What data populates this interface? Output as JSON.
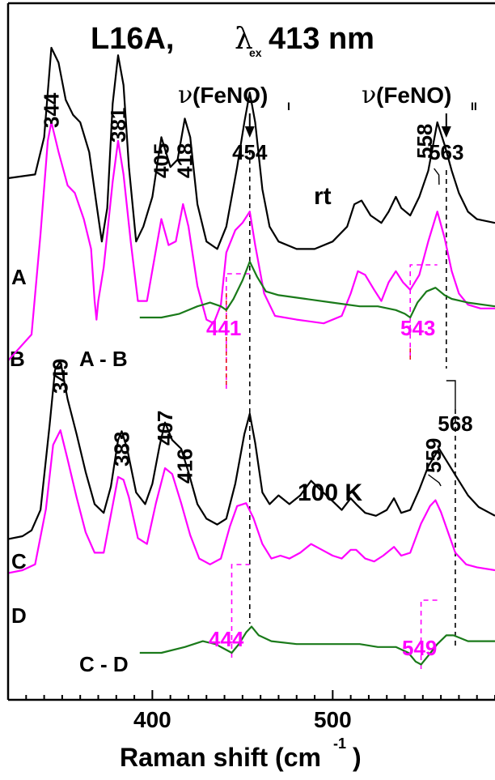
{
  "chart_data": {
    "type": "line",
    "title": {
      "main": "L16A,",
      "lambda": "λ",
      "sub": "ex",
      "tail": "413 nm"
    },
    "xlabel": "Raman shift (cm",
    "xlabel_sup": "-1",
    "xlabel_tail": ")",
    "xlim": [
      320,
      590
    ],
    "xticks": [
      400,
      500
    ],
    "colors": {
      "black": "#000000",
      "magenta": "#ff00ff",
      "green": "#1a7a1a"
    },
    "conditions": {
      "rt": "rt",
      "lowT": "100 K"
    },
    "mode_labels": [
      {
        "nu": "ν",
        "text": "(FeNO)",
        "sub": "I",
        "x": 454
      },
      {
        "nu": "ν",
        "text": "(FeNO)",
        "sub": "II",
        "x": 563
      }
    ],
    "peak_labels": [
      {
        "trace": "A",
        "text": "344",
        "x": 344,
        "rotate": true
      },
      {
        "trace": "A",
        "text": "381",
        "x": 381,
        "rotate": true
      },
      {
        "trace": "A",
        "text": "405",
        "x": 405,
        "rotate": true
      },
      {
        "trace": "A",
        "text": "418",
        "x": 418,
        "rotate": true
      },
      {
        "trace": "A",
        "text": "454",
        "x": 454,
        "rotate": false
      },
      {
        "trace": "A",
        "text": "558",
        "x": 558,
        "rotate": true
      },
      {
        "trace": "A",
        "text": "563",
        "x": 563,
        "rotate": false
      },
      {
        "trace": "C",
        "text": "349",
        "x": 349,
        "rotate": true
      },
      {
        "trace": "C",
        "text": "383",
        "x": 383,
        "rotate": true
      },
      {
        "trace": "C",
        "text": "407",
        "x": 407,
        "rotate": true
      },
      {
        "trace": "C",
        "text": "416",
        "x": 416,
        "rotate": true
      },
      {
        "trace": "C",
        "text": "559",
        "x": 559,
        "rotate": true
      },
      {
        "trace": "CD",
        "text": "568",
        "x": 568,
        "rotate": false
      }
    ],
    "diff_labels": [
      {
        "text": "441",
        "x": 441
      },
      {
        "text": "543",
        "x": 543
      },
      {
        "text": "444",
        "x": 444
      },
      {
        "text": "549",
        "x": 549
      }
    ],
    "series": [
      {
        "name": "A",
        "color": "#000000",
        "points": [
          [
            320,
            0.55
          ],
          [
            335,
            0.56
          ],
          [
            340,
            0.66
          ],
          [
            344,
            0.9
          ],
          [
            348,
            0.86
          ],
          [
            352,
            0.76
          ],
          [
            356,
            0.72
          ],
          [
            360,
            0.7
          ],
          [
            365,
            0.62
          ],
          [
            369,
            0.48
          ],
          [
            372,
            0.38
          ],
          [
            375,
            0.47
          ],
          [
            378,
            0.75
          ],
          [
            381,
            0.88
          ],
          [
            384,
            0.8
          ],
          [
            387,
            0.58
          ],
          [
            391,
            0.38
          ],
          [
            395,
            0.42
          ],
          [
            400,
            0.5
          ],
          [
            405,
            0.66
          ],
          [
            410,
            0.58
          ],
          [
            414,
            0.6
          ],
          [
            418,
            0.71
          ],
          [
            421,
            0.66
          ],
          [
            425,
            0.48
          ],
          [
            430,
            0.38
          ],
          [
            436,
            0.36
          ],
          [
            441,
            0.42
          ],
          [
            447,
            0.58
          ],
          [
            451,
            0.7
          ],
          [
            454,
            0.78
          ],
          [
            457,
            0.7
          ],
          [
            461,
            0.52
          ],
          [
            465,
            0.42
          ],
          [
            470,
            0.38
          ],
          [
            480,
            0.36
          ],
          [
            490,
            0.36
          ],
          [
            500,
            0.38
          ],
          [
            508,
            0.42
          ],
          [
            512,
            0.48
          ],
          [
            516,
            0.49
          ],
          [
            521,
            0.45
          ],
          [
            527,
            0.43
          ],
          [
            531,
            0.46
          ],
          [
            535,
            0.5
          ],
          [
            538,
            0.47
          ],
          [
            543,
            0.45
          ],
          [
            548,
            0.5
          ],
          [
            553,
            0.57
          ],
          [
            558,
            0.7
          ],
          [
            562,
            0.64
          ],
          [
            566,
            0.57
          ],
          [
            570,
            0.51
          ],
          [
            575,
            0.46
          ],
          [
            580,
            0.44
          ],
          [
            590,
            0.43
          ]
        ]
      },
      {
        "name": "B",
        "color": "#ff00ff",
        "points": [
          [
            320,
            0.08
          ],
          [
            333,
            0.15
          ],
          [
            338,
            0.42
          ],
          [
            342,
            0.67
          ],
          [
            344,
            0.72
          ],
          [
            348,
            0.64
          ],
          [
            353,
            0.55
          ],
          [
            357,
            0.53
          ],
          [
            362,
            0.46
          ],
          [
            366,
            0.38
          ],
          [
            368,
            0.24
          ],
          [
            369,
            0.19
          ],
          [
            370,
            0.24
          ],
          [
            373,
            0.33
          ],
          [
            378,
            0.56
          ],
          [
            381,
            0.67
          ],
          [
            384,
            0.58
          ],
          [
            388,
            0.4
          ],
          [
            392,
            0.24
          ],
          [
            397,
            0.24
          ],
          [
            401,
            0.35
          ],
          [
            405,
            0.46
          ],
          [
            409,
            0.39
          ],
          [
            413,
            0.4
          ],
          [
            417,
            0.5
          ],
          [
            420,
            0.44
          ],
          [
            425,
            0.28
          ],
          [
            430,
            0.19
          ],
          [
            434,
            0.18
          ],
          [
            438,
            0.23
          ],
          [
            441,
            0.37
          ],
          [
            446,
            0.43
          ],
          [
            450,
            0.45
          ],
          [
            454,
            0.48
          ],
          [
            457,
            0.39
          ],
          [
            462,
            0.26
          ],
          [
            468,
            0.2
          ],
          [
            480,
            0.19
          ],
          [
            495,
            0.18
          ],
          [
            505,
            0.2
          ],
          [
            510,
            0.26
          ],
          [
            514,
            0.32
          ],
          [
            518,
            0.31
          ],
          [
            523,
            0.27
          ],
          [
            527,
            0.24
          ],
          [
            531,
            0.29
          ],
          [
            535,
            0.32
          ],
          [
            539,
            0.29
          ],
          [
            543,
            0.27
          ],
          [
            548,
            0.31
          ],
          [
            553,
            0.4
          ],
          [
            558,
            0.48
          ],
          [
            562,
            0.41
          ],
          [
            566,
            0.32
          ],
          [
            570,
            0.26
          ],
          [
            575,
            0.23
          ],
          [
            582,
            0.22
          ],
          [
            590,
            0.22
          ]
        ]
      },
      {
        "name": "A - B",
        "color": "#1a7a1a",
        "points": [
          [
            393,
            0.25
          ],
          [
            405,
            0.25
          ],
          [
            415,
            0.26
          ],
          [
            425,
            0.28
          ],
          [
            432,
            0.29
          ],
          [
            438,
            0.28
          ],
          [
            441,
            0.27
          ],
          [
            445,
            0.3
          ],
          [
            450,
            0.35
          ],
          [
            454,
            0.4
          ],
          [
            458,
            0.36
          ],
          [
            463,
            0.32
          ],
          [
            470,
            0.31
          ],
          [
            485,
            0.3
          ],
          [
            500,
            0.29
          ],
          [
            515,
            0.28
          ],
          [
            525,
            0.28
          ],
          [
            535,
            0.27
          ],
          [
            540,
            0.26
          ],
          [
            543,
            0.25
          ],
          [
            547,
            0.29
          ],
          [
            552,
            0.32
          ],
          [
            557,
            0.33
          ],
          [
            562,
            0.31
          ],
          [
            566,
            0.3
          ],
          [
            575,
            0.29
          ],
          [
            590,
            0.28
          ]
        ]
      },
      {
        "name": "C",
        "color": "#000000",
        "points": [
          [
            320,
            0.24
          ],
          [
            328,
            0.25
          ],
          [
            333,
            0.27
          ],
          [
            338,
            0.34
          ],
          [
            343,
            0.63
          ],
          [
            346,
            0.82
          ],
          [
            349,
            0.85
          ],
          [
            353,
            0.72
          ],
          [
            358,
            0.6
          ],
          [
            363,
            0.47
          ],
          [
            368,
            0.36
          ],
          [
            373,
            0.33
          ],
          [
            377,
            0.42
          ],
          [
            381,
            0.58
          ],
          [
            383,
            0.61
          ],
          [
            386,
            0.55
          ],
          [
            391,
            0.4
          ],
          [
            396,
            0.36
          ],
          [
            400,
            0.43
          ],
          [
            404,
            0.56
          ],
          [
            407,
            0.64
          ],
          [
            411,
            0.58
          ],
          [
            416,
            0.55
          ],
          [
            420,
            0.47
          ],
          [
            425,
            0.36
          ],
          [
            430,
            0.31
          ],
          [
            436,
            0.29
          ],
          [
            441,
            0.31
          ],
          [
            446,
            0.43
          ],
          [
            451,
            0.6
          ],
          [
            454,
            0.67
          ],
          [
            457,
            0.57
          ],
          [
            461,
            0.4
          ],
          [
            465,
            0.36
          ],
          [
            470,
            0.39
          ],
          [
            476,
            0.36
          ],
          [
            482,
            0.39
          ],
          [
            488,
            0.44
          ],
          [
            493,
            0.41
          ],
          [
            500,
            0.37
          ],
          [
            505,
            0.34
          ],
          [
            510,
            0.38
          ],
          [
            513,
            0.36
          ],
          [
            518,
            0.33
          ],
          [
            524,
            0.32
          ],
          [
            530,
            0.34
          ],
          [
            534,
            0.38
          ],
          [
            538,
            0.33
          ],
          [
            543,
            0.34
          ],
          [
            548,
            0.41
          ],
          [
            553,
            0.49
          ],
          [
            559,
            0.55
          ],
          [
            563,
            0.51
          ],
          [
            567,
            0.47
          ],
          [
            571,
            0.43
          ],
          [
            575,
            0.39
          ],
          [
            581,
            0.35
          ],
          [
            587,
            0.33
          ],
          [
            590,
            0.32
          ]
        ]
      },
      {
        "name": "D",
        "color": "#ff00ff",
        "points": [
          [
            320,
            0.14
          ],
          [
            328,
            0.15
          ],
          [
            335,
            0.17
          ],
          [
            341,
            0.36
          ],
          [
            345,
            0.58
          ],
          [
            349,
            0.63
          ],
          [
            353,
            0.53
          ],
          [
            358,
            0.4
          ],
          [
            363,
            0.28
          ],
          [
            368,
            0.21
          ],
          [
            373,
            0.21
          ],
          [
            377,
            0.34
          ],
          [
            381,
            0.47
          ],
          [
            384,
            0.46
          ],
          [
            387,
            0.4
          ],
          [
            392,
            0.26
          ],
          [
            397,
            0.24
          ],
          [
            402,
            0.38
          ],
          [
            407,
            0.5
          ],
          [
            411,
            0.48
          ],
          [
            416,
            0.38
          ],
          [
            421,
            0.27
          ],
          [
            426,
            0.19
          ],
          [
            432,
            0.17
          ],
          [
            438,
            0.19
          ],
          [
            443,
            0.3
          ],
          [
            447,
            0.37
          ],
          [
            452,
            0.38
          ],
          [
            456,
            0.33
          ],
          [
            461,
            0.24
          ],
          [
            466,
            0.19
          ],
          [
            471,
            0.2
          ],
          [
            476,
            0.19
          ],
          [
            482,
            0.21
          ],
          [
            488,
            0.24
          ],
          [
            494,
            0.22
          ],
          [
            500,
            0.2
          ],
          [
            505,
            0.19
          ],
          [
            510,
            0.22
          ],
          [
            513,
            0.22
          ],
          [
            518,
            0.19
          ],
          [
            523,
            0.18
          ],
          [
            528,
            0.2
          ],
          [
            534,
            0.23
          ],
          [
            538,
            0.2
          ],
          [
            543,
            0.21
          ],
          [
            549,
            0.31
          ],
          [
            554,
            0.37
          ],
          [
            557,
            0.39
          ],
          [
            560,
            0.35
          ],
          [
            564,
            0.28
          ],
          [
            568,
            0.21
          ],
          [
            574,
            0.17
          ],
          [
            580,
            0.16
          ],
          [
            590,
            0.15
          ]
        ]
      },
      {
        "name": "C - D",
        "color": "#1a7a1a",
        "points": [
          [
            393,
            0.1
          ],
          [
            405,
            0.1
          ],
          [
            418,
            0.12
          ],
          [
            428,
            0.14
          ],
          [
            435,
            0.13
          ],
          [
            441,
            0.11
          ],
          [
            444,
            0.1
          ],
          [
            448,
            0.13
          ],
          [
            452,
            0.17
          ],
          [
            455,
            0.19
          ],
          [
            459,
            0.16
          ],
          [
            466,
            0.14
          ],
          [
            480,
            0.13
          ],
          [
            500,
            0.13
          ],
          [
            515,
            0.13
          ],
          [
            525,
            0.12
          ],
          [
            535,
            0.12
          ],
          [
            542,
            0.1
          ],
          [
            546,
            0.07
          ],
          [
            549,
            0.06
          ],
          [
            553,
            0.09
          ],
          [
            558,
            0.13
          ],
          [
            563,
            0.16
          ],
          [
            567,
            0.16
          ],
          [
            575,
            0.14
          ],
          [
            590,
            0.14
          ]
        ]
      }
    ]
  }
}
